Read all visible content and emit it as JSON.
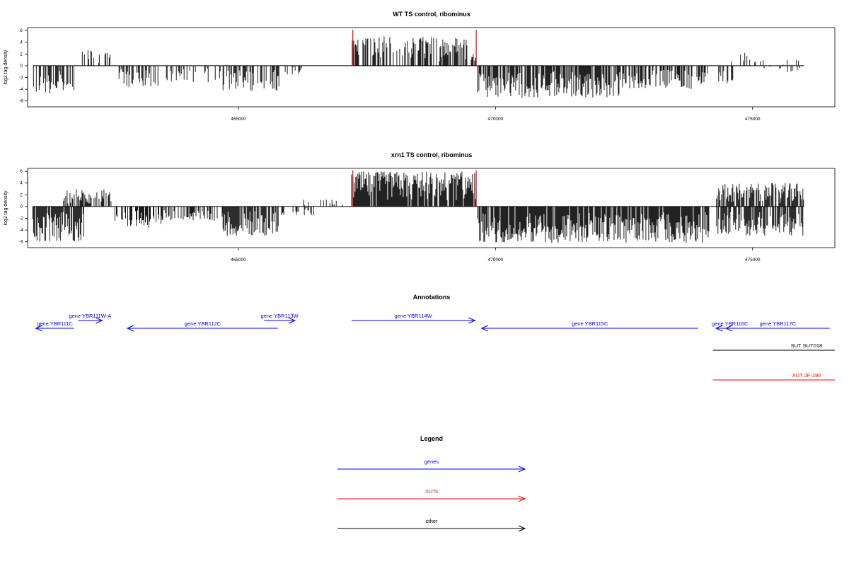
{
  "chart_data": [
    {
      "type": "bar",
      "title": "WT TS control, ribominus",
      "ylabel": "log2 tag density",
      "xlabel": "",
      "xlim": [
        460900,
        476600
      ],
      "ylim": [
        -7,
        6.5
      ],
      "y_ticks": [
        6,
        4,
        2,
        0,
        -2,
        -4,
        -6
      ],
      "x_ticks": [
        465000,
        470000,
        475000
      ],
      "markers": [
        467225,
        469625
      ],
      "segments": [
        {
          "start": 461000,
          "end": 461800,
          "sign": -1,
          "max": 4.8,
          "density": 0.55
        },
        {
          "start": 461950,
          "end": 462550,
          "sign": 1,
          "max": 2.8,
          "density": 0.35
        },
        {
          "start": 462650,
          "end": 463450,
          "sign": -1,
          "max": 3.6,
          "density": 0.5
        },
        {
          "start": 463600,
          "end": 464700,
          "sign": -1,
          "max": 2.8,
          "density": 0.35
        },
        {
          "start": 464700,
          "end": 465800,
          "sign": -1,
          "max": 4.4,
          "density": 0.45
        },
        {
          "start": 465800,
          "end": 466300,
          "sign": -1,
          "max": 1.5,
          "density": 0.25
        },
        {
          "start": 467200,
          "end": 469630,
          "sign": 1,
          "max": 5.0,
          "density": 0.55
        },
        {
          "start": 469650,
          "end": 472500,
          "sign": -1,
          "max": 5.5,
          "density": 0.75
        },
        {
          "start": 472500,
          "end": 474150,
          "sign": -1,
          "max": 4.0,
          "density": 0.55
        },
        {
          "start": 474300,
          "end": 474650,
          "sign": -1,
          "max": 3.0,
          "density": 0.3
        },
        {
          "start": 474450,
          "end": 475000,
          "sign": 1,
          "max": 2.2,
          "density": 0.3
        },
        {
          "start": 475000,
          "end": 476000,
          "sign": 1,
          "max": 1.2,
          "density": 0.15
        },
        {
          "start": 475100,
          "end": 476000,
          "sign": -1,
          "max": 1.2,
          "density": 0.12
        }
      ]
    },
    {
      "type": "bar",
      "title": "xrn1 TS control, ribominus",
      "ylabel": "log2 tag density",
      "xlabel": "",
      "xlim": [
        460900,
        476600
      ],
      "ylim": [
        -7,
        6.5
      ],
      "y_ticks": [
        6,
        4,
        2,
        0,
        -2,
        -4,
        -6
      ],
      "x_ticks": [
        465000,
        470000,
        475000
      ],
      "markers": [
        467225,
        469625
      ],
      "segments": [
        {
          "start": 461000,
          "end": 462000,
          "sign": -1,
          "max": 6.0,
          "density": 0.9
        },
        {
          "start": 461600,
          "end": 462550,
          "sign": 1,
          "max": 3.0,
          "density": 0.65
        },
        {
          "start": 462600,
          "end": 463500,
          "sign": -1,
          "max": 3.6,
          "density": 0.55
        },
        {
          "start": 463500,
          "end": 464700,
          "sign": -1,
          "max": 2.5,
          "density": 0.45
        },
        {
          "start": 464700,
          "end": 465800,
          "sign": -1,
          "max": 5.0,
          "density": 0.8
        },
        {
          "start": 465800,
          "end": 466500,
          "sign": -1,
          "max": 1.5,
          "density": 0.25
        },
        {
          "start": 466200,
          "end": 467100,
          "sign": 1,
          "max": 1.2,
          "density": 0.15
        },
        {
          "start": 467200,
          "end": 469630,
          "sign": 1,
          "max": 6.0,
          "density": 0.9
        },
        {
          "start": 469650,
          "end": 474150,
          "sign": -1,
          "max": 6.2,
          "density": 0.9
        },
        {
          "start": 474300,
          "end": 476000,
          "sign": 1,
          "max": 4.0,
          "density": 0.8
        },
        {
          "start": 474300,
          "end": 476000,
          "sign": -1,
          "max": 5.0,
          "density": 0.8
        }
      ]
    }
  ],
  "annotations": {
    "title": "Annotations",
    "features": [
      {
        "name": "gene YBR111C",
        "start": 461800,
        "end": 461060,
        "kind": "gene",
        "row": 2
      },
      {
        "name": "gene YBR111W-A",
        "start": 461880,
        "end": 462350,
        "kind": "gene",
        "row": 1
      },
      {
        "name": "gene YBR112C",
        "start": 465770,
        "end": 462840,
        "kind": "gene",
        "row": 2
      },
      {
        "name": "gene YBR113W",
        "start": 465500,
        "end": 466100,
        "kind": "gene",
        "row": 1
      },
      {
        "name": "gene YBR114W",
        "start": 467200,
        "end": 469600,
        "kind": "gene",
        "row": 1
      },
      {
        "name": "gene YBR115C",
        "start": 473940,
        "end": 469730,
        "kind": "gene",
        "row": 2
      },
      {
        "name": "gene YBR116C",
        "start": 474830,
        "end": 474290,
        "kind": "gene",
        "row": 2
      },
      {
        "name": "gene YBR117C",
        "start": 476500,
        "end": 474480,
        "kind": "gene",
        "row": 2
      },
      {
        "name": "SUT SUT018",
        "start": 474230,
        "end": 476600,
        "kind": "other",
        "row": 3
      },
      {
        "name": "XUT 2F-190",
        "start": 474230,
        "end": 476600,
        "kind": "xut",
        "row": 4
      }
    ]
  },
  "legend": {
    "title": "Legend",
    "items": [
      {
        "label": "genes",
        "kind": "gene"
      },
      {
        "label": "XUTs",
        "kind": "xut"
      },
      {
        "label": "other",
        "kind": "other"
      }
    ]
  },
  "colors": {
    "gene": "#0000ff",
    "xut": "#ff0000",
    "other": "#000000",
    "bars": "#000000",
    "marker": "#ff0000"
  }
}
